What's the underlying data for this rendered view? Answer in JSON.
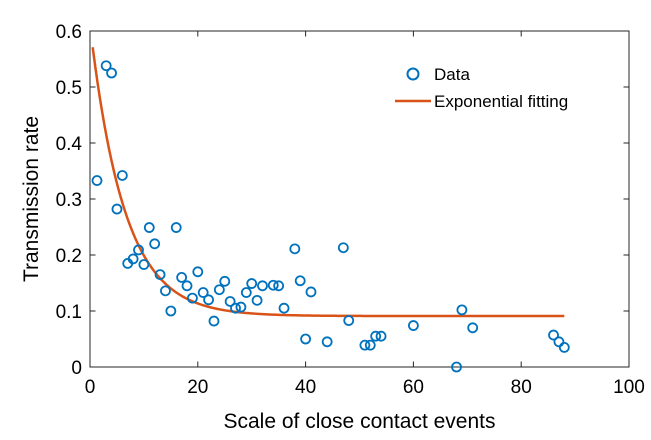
{
  "chart_data": {
    "type": "scatter",
    "xlabel": "Scale of close contact events",
    "ylabel": "Transmission rate",
    "xlim": [
      0,
      100
    ],
    "ylim": [
      0,
      0.6
    ],
    "xticks": [
      "0",
      "20",
      "40",
      "60",
      "80",
      "100"
    ],
    "yticks": [
      "0",
      "0.1",
      "0.2",
      "0.3",
      "0.4",
      "0.5",
      "0.6"
    ],
    "grid": false,
    "legend_position": "top-right",
    "colors": {
      "data": "#0072BD",
      "fit": "#D95319"
    },
    "series": [
      {
        "name": "Data",
        "type": "scatter",
        "points": [
          [
            1.3,
            0.333
          ],
          [
            3,
            0.538
          ],
          [
            4,
            0.525
          ],
          [
            5,
            0.282
          ],
          [
            6,
            0.342
          ],
          [
            7,
            0.185
          ],
          [
            8,
            0.193
          ],
          [
            9,
            0.209
          ],
          [
            10,
            0.183
          ],
          [
            11,
            0.249
          ],
          [
            12,
            0.22
          ],
          [
            13,
            0.165
          ],
          [
            14,
            0.136
          ],
          [
            15,
            0.1
          ],
          [
            16,
            0.249
          ],
          [
            17,
            0.16
          ],
          [
            18,
            0.145
          ],
          [
            19,
            0.123
          ],
          [
            20,
            0.17
          ],
          [
            21,
            0.133
          ],
          [
            22,
            0.12
          ],
          [
            23,
            0.082
          ],
          [
            24,
            0.138
          ],
          [
            25,
            0.153
          ],
          [
            26,
            0.117
          ],
          [
            27,
            0.105
          ],
          [
            28,
            0.107
          ],
          [
            29,
            0.133
          ],
          [
            30,
            0.149
          ],
          [
            31,
            0.119
          ],
          [
            32,
            0.145
          ],
          [
            34,
            0.146
          ],
          [
            35,
            0.145
          ],
          [
            36,
            0.105
          ],
          [
            38,
            0.211
          ],
          [
            39,
            0.154
          ],
          [
            40,
            0.05
          ],
          [
            41,
            0.134
          ],
          [
            44,
            0.045
          ],
          [
            47,
            0.213
          ],
          [
            48,
            0.083
          ],
          [
            51,
            0.039
          ],
          [
            52,
            0.039
          ],
          [
            53,
            0.055
          ],
          [
            54,
            0.055
          ],
          [
            60,
            0.074
          ],
          [
            68,
            0.0
          ],
          [
            69,
            0.102
          ],
          [
            71,
            0.07
          ],
          [
            86,
            0.057
          ],
          [
            87,
            0.045
          ],
          [
            88,
            0.035
          ]
        ]
      },
      {
        "name": "Exponential fitting",
        "type": "line",
        "model": {
          "a": 0.48,
          "b": 0.157,
          "c": 0.091,
          "x0": 0.5
        },
        "x_range": [
          0.5,
          88
        ]
      }
    ]
  }
}
